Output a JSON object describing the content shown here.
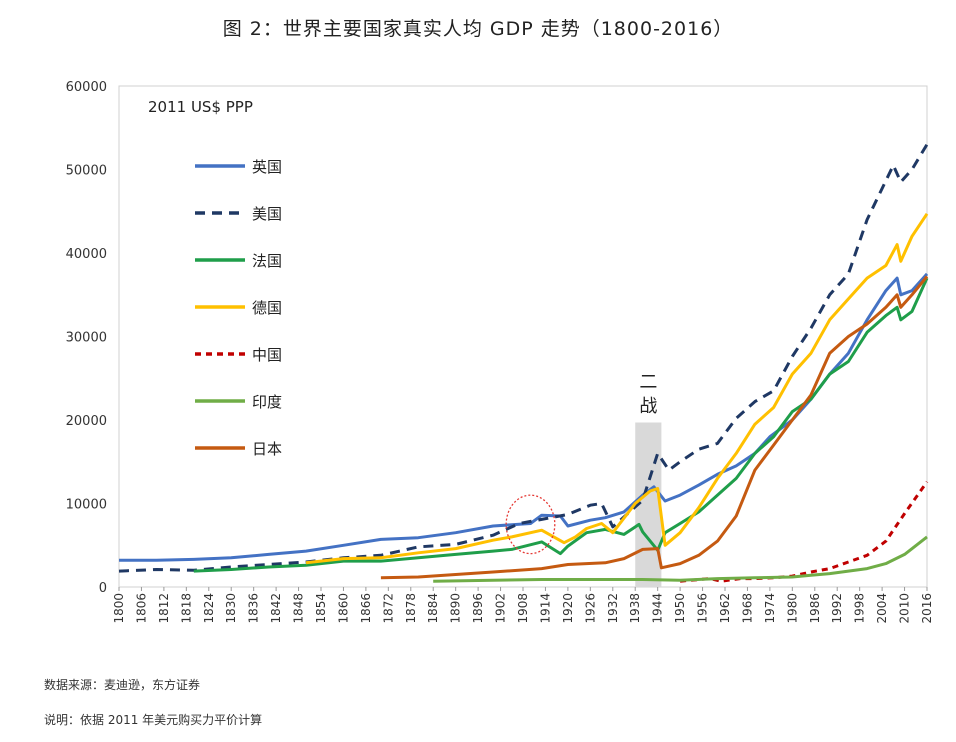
{
  "header": {
    "title": "图 2：世界主要国家真实人均 GDP 走势（1800-2016）"
  },
  "footer": {
    "source": "数据来源：麦迪逊，东方证券",
    "note": "说明：依据 2011 年美元购买力平价计算"
  },
  "chart_data": {
    "type": "line",
    "unit_label": "2011 US$ PPP",
    "xlim": [
      1800,
      2016
    ],
    "ylim": [
      0,
      60000
    ],
    "yticks": [
      0,
      10000,
      20000,
      30000,
      40000,
      50000,
      60000
    ],
    "ytick_labels": [
      "0",
      "10000",
      "20000",
      "30000",
      "40000",
      "50000",
      "60000"
    ],
    "xticks": [
      1800,
      1806,
      1812,
      1818,
      1824,
      1830,
      1836,
      1842,
      1848,
      1854,
      1860,
      1866,
      1872,
      1878,
      1884,
      1890,
      1896,
      1902,
      1908,
      1914,
      1920,
      1926,
      1932,
      1938,
      1944,
      1950,
      1956,
      1962,
      1968,
      1974,
      1980,
      1986,
      1992,
      1998,
      2004,
      2010,
      2016
    ],
    "xtick_labels": [
      "1800",
      "1806",
      "1812",
      "1818",
      "1824",
      "1830",
      "1836",
      "1842",
      "1848",
      "1854",
      "1860",
      "1866",
      "1872",
      "1878",
      "1884",
      "1890",
      "1896",
      "1902",
      "1908",
      "1914",
      "1920",
      "1926",
      "1932",
      "1938",
      "1944",
      "1950",
      "1956",
      "1962",
      "1968",
      "1974",
      "1980",
      "1986",
      "1992",
      "1998",
      "2004",
      "2010",
      "2016"
    ],
    "annotation": {
      "label_lines": [
        "二",
        "战"
      ],
      "x_start": 1938,
      "x_end": 1945,
      "band_color": "#d9d9d9"
    },
    "highlight_circle": {
      "cx": 1910,
      "cy": 7500,
      "rx": 6.5,
      "ry": 3500,
      "color": "#e53935"
    },
    "legend_position": "upper-left",
    "series": [
      {
        "name": "英国",
        "color": "#4472c4",
        "dash": "solid",
        "points": [
          [
            1800,
            3200
          ],
          [
            1810,
            3200
          ],
          [
            1820,
            3300
          ],
          [
            1830,
            3500
          ],
          [
            1840,
            3900
          ],
          [
            1850,
            4300
          ],
          [
            1860,
            5000
          ],
          [
            1870,
            5700
          ],
          [
            1880,
            5900
          ],
          [
            1890,
            6500
          ],
          [
            1900,
            7300
          ],
          [
            1910,
            7600
          ],
          [
            1913,
            8600
          ],
          [
            1918,
            8500
          ],
          [
            1920,
            7300
          ],
          [
            1926,
            8000
          ],
          [
            1930,
            8300
          ],
          [
            1935,
            9000
          ],
          [
            1940,
            11000
          ],
          [
            1943,
            12000
          ],
          [
            1946,
            10300
          ],
          [
            1950,
            11000
          ],
          [
            1955,
            12200
          ],
          [
            1960,
            13500
          ],
          [
            1965,
            14500
          ],
          [
            1970,
            16000
          ],
          [
            1974,
            18000
          ],
          [
            1980,
            20000
          ],
          [
            1985,
            22500
          ],
          [
            1990,
            25500
          ],
          [
            1995,
            28000
          ],
          [
            2000,
            32000
          ],
          [
            2005,
            35500
          ],
          [
            2008,
            37000
          ],
          [
            2009,
            35000
          ],
          [
            2012,
            35500
          ],
          [
            2016,
            37500
          ]
        ]
      },
      {
        "name": "美国",
        "color": "#1f3864",
        "dash": "10,7",
        "points": [
          [
            1800,
            1900
          ],
          [
            1810,
            2100
          ],
          [
            1820,
            2000
          ],
          [
            1830,
            2400
          ],
          [
            1840,
            2700
          ],
          [
            1850,
            3000
          ],
          [
            1860,
            3500
          ],
          [
            1870,
            3800
          ],
          [
            1880,
            4800
          ],
          [
            1890,
            5100
          ],
          [
            1900,
            6200
          ],
          [
            1907,
            7600
          ],
          [
            1913,
            8100
          ],
          [
            1920,
            8700
          ],
          [
            1926,
            9800
          ],
          [
            1929,
            10000
          ],
          [
            1932,
            7200
          ],
          [
            1937,
            9200
          ],
          [
            1940,
            10400
          ],
          [
            1944,
            16000
          ],
          [
            1947,
            14000
          ],
          [
            1950,
            15000
          ],
          [
            1955,
            16500
          ],
          [
            1960,
            17200
          ],
          [
            1965,
            20200
          ],
          [
            1970,
            22200
          ],
          [
            1975,
            23500
          ],
          [
            1980,
            27600
          ],
          [
            1985,
            31000
          ],
          [
            1990,
            35000
          ],
          [
            1995,
            37500
          ],
          [
            2000,
            44000
          ],
          [
            2007,
            50500
          ],
          [
            2009,
            48500
          ],
          [
            2012,
            50000
          ],
          [
            2016,
            53000
          ]
        ]
      },
      {
        "name": "法国",
        "color": "#1f9e4a",
        "dash": "solid",
        "points": [
          [
            1820,
            1900
          ],
          [
            1830,
            2100
          ],
          [
            1840,
            2400
          ],
          [
            1850,
            2600
          ],
          [
            1860,
            3100
          ],
          [
            1870,
            3100
          ],
          [
            1880,
            3500
          ],
          [
            1890,
            3900
          ],
          [
            1900,
            4300
          ],
          [
            1905,
            4500
          ],
          [
            1913,
            5400
          ],
          [
            1918,
            4000
          ],
          [
            1920,
            4900
          ],
          [
            1925,
            6500
          ],
          [
            1930,
            6900
          ],
          [
            1935,
            6300
          ],
          [
            1939,
            7500
          ],
          [
            1940,
            6600
          ],
          [
            1944,
            4400
          ],
          [
            1946,
            6500
          ],
          [
            1950,
            7600
          ],
          [
            1955,
            9000
          ],
          [
            1960,
            11000
          ],
          [
            1965,
            13000
          ],
          [
            1970,
            16000
          ],
          [
            1975,
            18000
          ],
          [
            1980,
            21000
          ],
          [
            1985,
            22500
          ],
          [
            1990,
            25500
          ],
          [
            1995,
            27000
          ],
          [
            2000,
            30500
          ],
          [
            2005,
            32500
          ],
          [
            2008,
            33500
          ],
          [
            2009,
            32000
          ],
          [
            2012,
            33000
          ],
          [
            2016,
            37000
          ]
        ]
      },
      {
        "name": "德国",
        "color": "#ffc000",
        "dash": "solid",
        "points": [
          [
            1850,
            2900
          ],
          [
            1860,
            3400
          ],
          [
            1870,
            3500
          ],
          [
            1880,
            4100
          ],
          [
            1890,
            4600
          ],
          [
            1900,
            5600
          ],
          [
            1905,
            6000
          ],
          [
            1913,
            6800
          ],
          [
            1919,
            5300
          ],
          [
            1922,
            6000
          ],
          [
            1925,
            7000
          ],
          [
            1929,
            7600
          ],
          [
            1932,
            6500
          ],
          [
            1938,
            10000
          ],
          [
            1942,
            11500
          ],
          [
            1944,
            11800
          ],
          [
            1946,
            5000
          ],
          [
            1950,
            6500
          ],
          [
            1955,
            9500
          ],
          [
            1960,
            13000
          ],
          [
            1965,
            16000
          ],
          [
            1970,
            19500
          ],
          [
            1975,
            21500
          ],
          [
            1980,
            25500
          ],
          [
            1985,
            28000
          ],
          [
            1990,
            32000
          ],
          [
            1995,
            34500
          ],
          [
            2000,
            37000
          ],
          [
            2005,
            38500
          ],
          [
            2008,
            41000
          ],
          [
            2009,
            39000
          ],
          [
            2012,
            42000
          ],
          [
            2016,
            44700
          ]
        ]
      },
      {
        "name": "中国",
        "color": "#c00000",
        "dash": "6,5",
        "points": [
          [
            1950,
            700
          ],
          [
            1958,
            1000
          ],
          [
            1961,
            700
          ],
          [
            1966,
            1000
          ],
          [
            1970,
            1000
          ],
          [
            1975,
            1100
          ],
          [
            1980,
            1300
          ],
          [
            1985,
            1800
          ],
          [
            1990,
            2200
          ],
          [
            1995,
            3000
          ],
          [
            2000,
            3800
          ],
          [
            2005,
            5500
          ],
          [
            2010,
            8800
          ],
          [
            2016,
            12600
          ]
        ]
      },
      {
        "name": "印度",
        "color": "#70ad47",
        "dash": "solid",
        "points": [
          [
            1884,
            700
          ],
          [
            1900,
            800
          ],
          [
            1913,
            900
          ],
          [
            1930,
            900
          ],
          [
            1940,
            900
          ],
          [
            1950,
            800
          ],
          [
            1960,
            1000
          ],
          [
            1970,
            1100
          ],
          [
            1980,
            1200
          ],
          [
            1985,
            1400
          ],
          [
            1990,
            1600
          ],
          [
            1995,
            1900
          ],
          [
            2000,
            2200
          ],
          [
            2005,
            2800
          ],
          [
            2010,
            3900
          ],
          [
            2016,
            6000
          ]
        ]
      },
      {
        "name": "日本",
        "color": "#c55a11",
        "dash": "solid",
        "points": [
          [
            1870,
            1100
          ],
          [
            1880,
            1200
          ],
          [
            1890,
            1500
          ],
          [
            1900,
            1800
          ],
          [
            1913,
            2200
          ],
          [
            1920,
            2700
          ],
          [
            1925,
            2800
          ],
          [
            1930,
            2900
          ],
          [
            1935,
            3400
          ],
          [
            1940,
            4500
          ],
          [
            1944,
            4600
          ],
          [
            1945,
            2300
          ],
          [
            1950,
            2800
          ],
          [
            1955,
            3800
          ],
          [
            1960,
            5500
          ],
          [
            1965,
            8500
          ],
          [
            1970,
            14000
          ],
          [
            1975,
            17000
          ],
          [
            1980,
            20000
          ],
          [
            1985,
            23000
          ],
          [
            1990,
            28000
          ],
          [
            1995,
            30000
          ],
          [
            2000,
            31500
          ],
          [
            2005,
            33500
          ],
          [
            2008,
            35000
          ],
          [
            2009,
            33500
          ],
          [
            2012,
            35000
          ],
          [
            2016,
            37200
          ]
        ]
      }
    ]
  }
}
